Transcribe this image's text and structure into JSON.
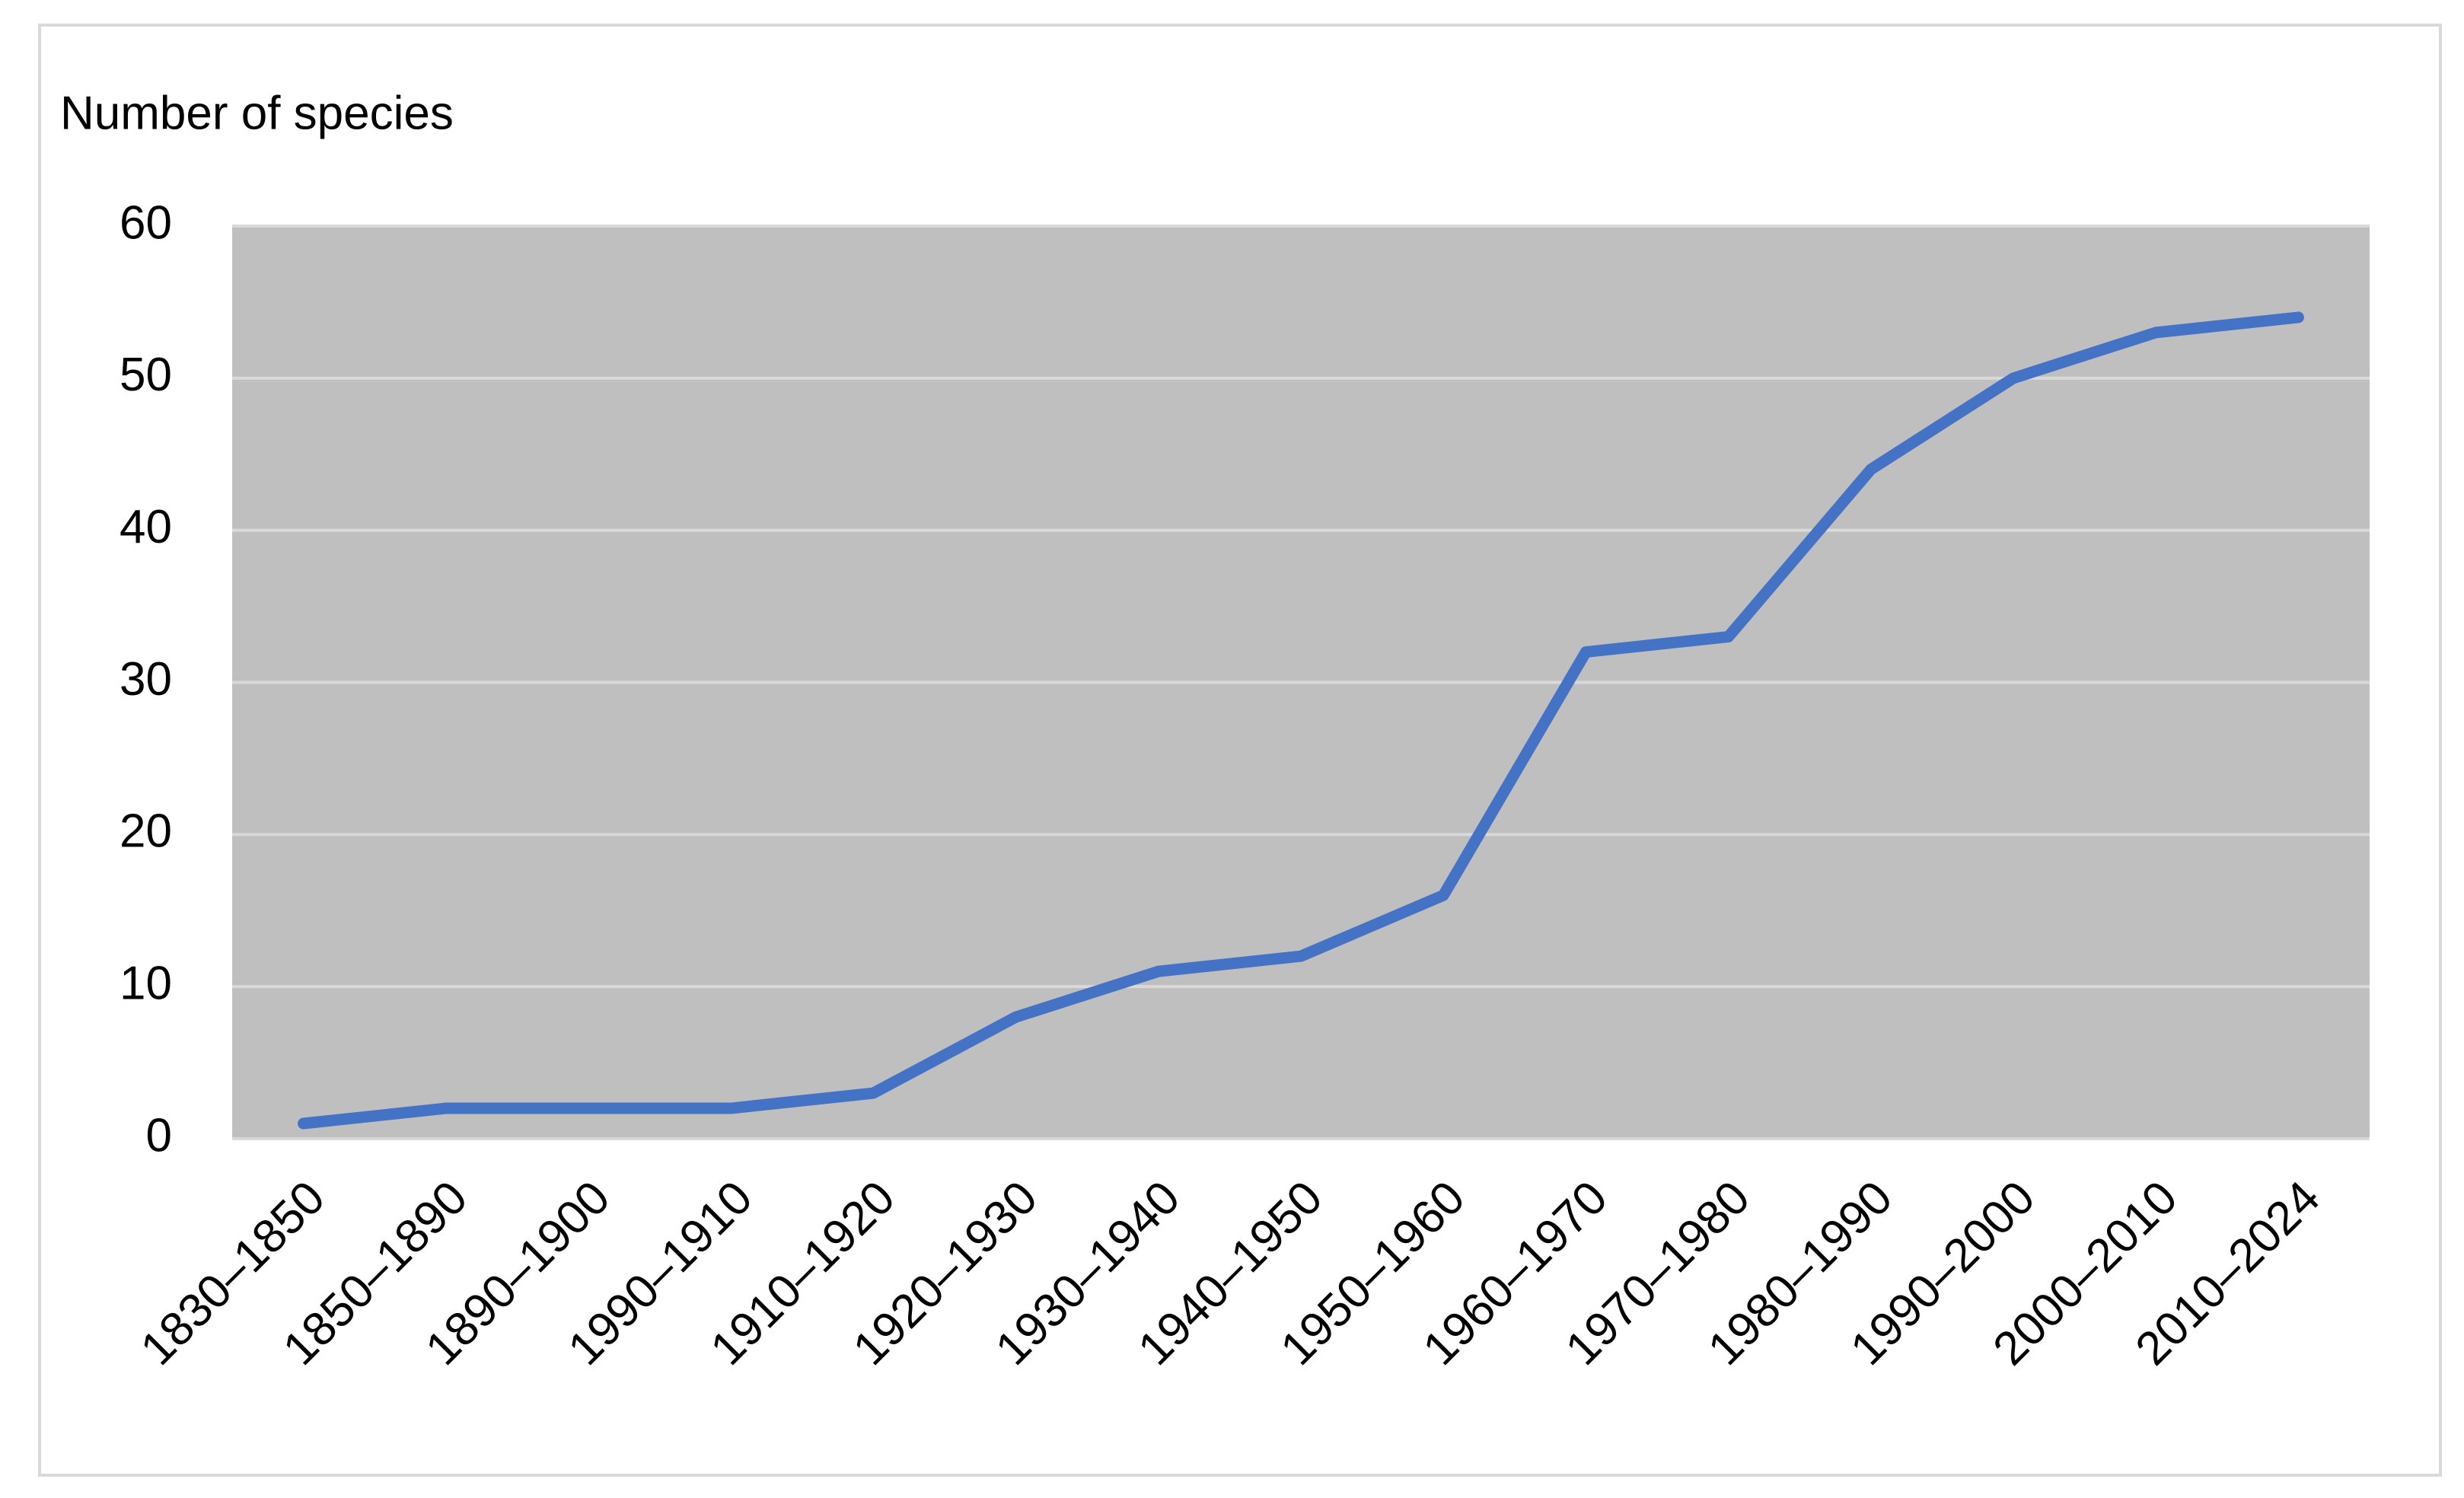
{
  "chart_data": {
    "type": "line",
    "y_label": "Number of species",
    "categories": [
      "1830–1850",
      "1850–1890",
      "1890–1900",
      "1990–1910",
      "1910–1920",
      "1920–1930",
      "1930–1940",
      "1940–1950",
      "1950–1960",
      "1960–1970",
      "1970–1980",
      "1980–1990",
      "1990–2000",
      "2000–2010",
      "2010–2024"
    ],
    "values": [
      1,
      2,
      2,
      2,
      3,
      8,
      11,
      12,
      16,
      32,
      33,
      44,
      50,
      53,
      54
    ],
    "color": "#4472c4",
    "ylim": [
      0,
      60
    ],
    "yticks": [
      0,
      10,
      20,
      30,
      40,
      50,
      60
    ],
    "grid": true
  }
}
